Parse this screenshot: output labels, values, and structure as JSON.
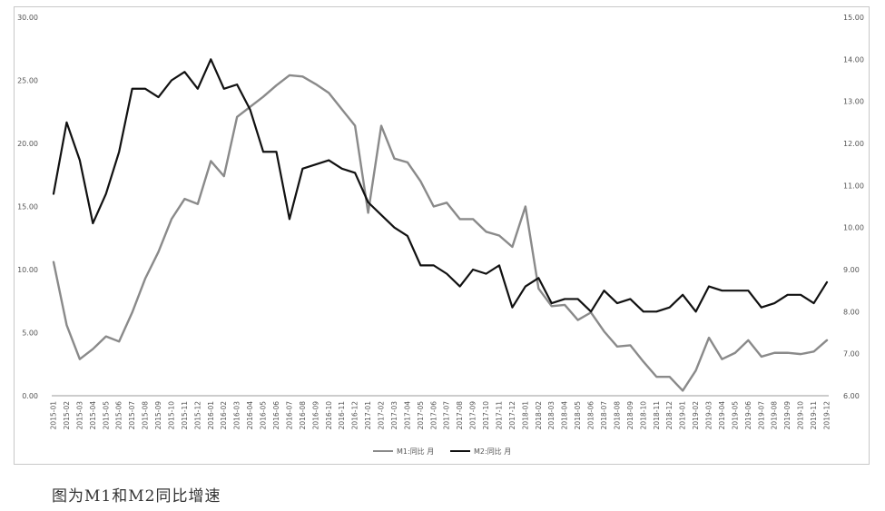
{
  "caption": "图为M1和M2同比增速",
  "chart_data": {
    "type": "line",
    "title": "",
    "x": [
      "2015-01",
      "2015-02",
      "2015-03",
      "2015-04",
      "2015-05",
      "2015-06",
      "2015-07",
      "2015-08",
      "2015-09",
      "2015-10",
      "2015-11",
      "2015-12",
      "2016-01",
      "2016-02",
      "2016-03",
      "2016-04",
      "2016-05",
      "2016-06",
      "2016-07",
      "2016-08",
      "2016-09",
      "2016-10",
      "2016-11",
      "2016-12",
      "2017-01",
      "2017-02",
      "2017-03",
      "2017-04",
      "2017-05",
      "2017-06",
      "2017-07",
      "2017-08",
      "2017-09",
      "2017-10",
      "2017-11",
      "2017-12",
      "2018-01",
      "2018-02",
      "2018-03",
      "2018-04",
      "2018-05",
      "2018-06",
      "2018-07",
      "2018-08",
      "2018-09",
      "2018-10",
      "2018-11",
      "2018-12",
      "2019-01",
      "2019-02",
      "2019-03",
      "2019-04",
      "2019-05",
      "2019-06",
      "2019-07",
      "2019-08",
      "2019-09",
      "2019-10",
      "2019-11",
      "2019-12"
    ],
    "y_left": {
      "min": 0,
      "max": 30,
      "ticks": [
        "0.00",
        "5.00",
        "10.00",
        "15.00",
        "20.00",
        "25.00",
        "30.00"
      ]
    },
    "y_right": {
      "min": 6,
      "max": 15,
      "ticks": [
        "6.00",
        "7.00",
        "8.00",
        "9.00",
        "10.00",
        "11.00",
        "12.00",
        "13.00",
        "14.00",
        "15.00"
      ]
    },
    "series": [
      {
        "name": "M1:同比 月",
        "axis": "left",
        "color": "#8a8a8a",
        "values": [
          10.6,
          5.6,
          2.9,
          3.7,
          4.7,
          4.3,
          6.6,
          9.3,
          11.4,
          14.0,
          15.6,
          15.2,
          18.6,
          17.4,
          22.1,
          22.9,
          23.7,
          24.6,
          25.4,
          25.3,
          24.7,
          24.0,
          22.7,
          21.4,
          14.5,
          21.4,
          18.8,
          18.5,
          17.0,
          15.0,
          15.3,
          14.0,
          14.0,
          13.0,
          12.7,
          11.8,
          15.0,
          8.5,
          7.1,
          7.2,
          6.0,
          6.6,
          5.1,
          3.9,
          4.0,
          2.7,
          1.5,
          1.5,
          0.4,
          2.0,
          4.6,
          2.9,
          3.4,
          4.4,
          3.1,
          3.4,
          3.4,
          3.3,
          3.5,
          4.4
        ]
      },
      {
        "name": "M2:同比 月",
        "axis": "right",
        "color": "#111111",
        "values": [
          10.8,
          12.5,
          11.6,
          10.1,
          10.8,
          11.8,
          13.3,
          13.3,
          13.1,
          13.5,
          13.7,
          13.3,
          14.0,
          13.3,
          13.4,
          12.8,
          11.8,
          11.8,
          10.2,
          11.4,
          11.5,
          11.6,
          11.4,
          11.3,
          10.6,
          10.3,
          10.0,
          9.8,
          9.1,
          9.1,
          8.9,
          8.6,
          9.0,
          8.9,
          9.1,
          8.1,
          8.6,
          8.8,
          8.2,
          8.3,
          8.3,
          8.0,
          8.5,
          8.2,
          8.3,
          8.0,
          8.0,
          8.1,
          8.4,
          8.0,
          8.6,
          8.5,
          8.5,
          8.5,
          8.1,
          8.2,
          8.4,
          8.4,
          8.2,
          8.7
        ]
      }
    ],
    "legend_position": "bottom-center",
    "grid": false
  }
}
